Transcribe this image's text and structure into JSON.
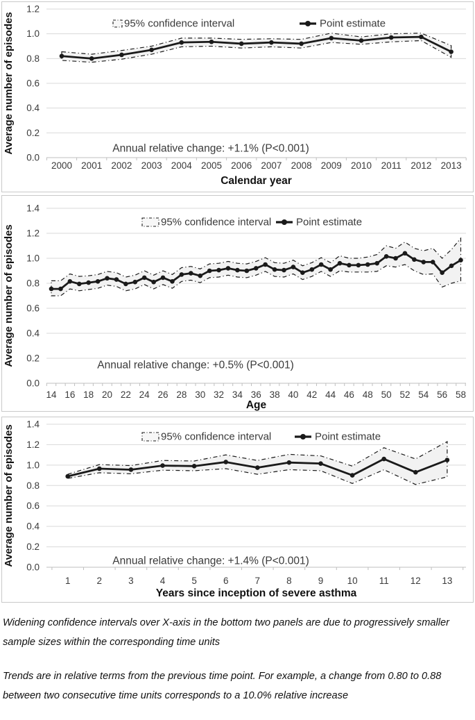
{
  "figure": {
    "footnotes": [
      "Widening confidence intervals over X-axis in the bottom two panels are due to progressively smaller sample sizes within the corresponding time units",
      "Trends are in relative terms from the previous time point. For example, a change from 0.80 to 0.88 between two consecutive time units corresponds to a 10.0% relative increase"
    ]
  },
  "chart_data": [
    {
      "type": "line",
      "title": "",
      "xlabel": "Calendar year",
      "ylabel": "Average number of episodes",
      "ylim": [
        0,
        1.2
      ],
      "yticks": [
        0.0,
        0.2,
        0.4,
        0.6,
        0.8,
        1.0,
        1.2
      ],
      "grid": true,
      "legend_position": "top-center",
      "legend": {
        "ci_label": "95% confidence interval",
        "point_label": "Point estimate"
      },
      "annotation": "Annual relative change: +1.1% (P<0.001)",
      "categories": [
        2000,
        2001,
        2002,
        2003,
        2004,
        2005,
        2006,
        2007,
        2008,
        2009,
        2010,
        2011,
        2012,
        2013
      ],
      "xtick_interval": 1,
      "series": [
        {
          "name": "Point estimate",
          "values": [
            0.82,
            0.8,
            0.83,
            0.87,
            0.93,
            0.935,
            0.92,
            0.93,
            0.92,
            0.965,
            0.945,
            0.97,
            0.975,
            0.855
          ]
        },
        {
          "name": "95% CI upper",
          "values": [
            0.855,
            0.835,
            0.865,
            0.9,
            0.965,
            0.965,
            0.955,
            0.96,
            0.955,
            1.005,
            0.975,
            1.0,
            1.005,
            0.905
          ]
        },
        {
          "name": "95% CI lower",
          "values": [
            0.785,
            0.77,
            0.795,
            0.835,
            0.895,
            0.9,
            0.885,
            0.895,
            0.885,
            0.93,
            0.915,
            0.935,
            0.945,
            0.81
          ]
        }
      ]
    },
    {
      "type": "line",
      "title": "",
      "xlabel": "Age",
      "ylabel": "Average number of episodes",
      "ylim": [
        0,
        1.4
      ],
      "yticks": [
        0.0,
        0.2,
        0.4,
        0.6,
        0.8,
        1.0,
        1.2,
        1.4
      ],
      "grid": true,
      "legend_position": "top-center",
      "legend": {
        "ci_label": "95% confidence interval",
        "point_label": "Point estimate"
      },
      "annotation": "Annual relative change: +0.5% (P<0.001)",
      "categories": [
        14,
        15,
        16,
        17,
        18,
        19,
        20,
        21,
        22,
        23,
        24,
        25,
        26,
        27,
        28,
        29,
        30,
        31,
        32,
        33,
        34,
        35,
        36,
        37,
        38,
        39,
        40,
        41,
        42,
        43,
        44,
        45,
        46,
        47,
        48,
        49,
        50,
        51,
        52,
        53,
        54,
        55,
        56,
        57,
        58
      ],
      "xtick_interval": 2,
      "series": [
        {
          "name": "Point estimate",
          "values": [
            0.755,
            0.755,
            0.815,
            0.795,
            0.805,
            0.815,
            0.84,
            0.83,
            0.795,
            0.81,
            0.845,
            0.81,
            0.845,
            0.815,
            0.87,
            0.88,
            0.86,
            0.9,
            0.905,
            0.92,
            0.905,
            0.9,
            0.92,
            0.95,
            0.91,
            0.905,
            0.93,
            0.885,
            0.91,
            0.95,
            0.91,
            0.96,
            0.945,
            0.945,
            0.95,
            0.96,
            1.015,
            1.0,
            1.04,
            0.99,
            0.97,
            0.97,
            0.885,
            0.94,
            0.985
          ]
        },
        {
          "name": "95% CI upper",
          "values": [
            0.82,
            0.82,
            0.875,
            0.855,
            0.86,
            0.87,
            0.895,
            0.885,
            0.85,
            0.865,
            0.9,
            0.865,
            0.9,
            0.87,
            0.925,
            0.935,
            0.915,
            0.955,
            0.96,
            0.975,
            0.96,
            0.955,
            0.975,
            1.005,
            0.965,
            0.96,
            0.985,
            0.94,
            0.965,
            1.005,
            0.965,
            1.02,
            1.0,
            1.0,
            1.01,
            1.03,
            1.1,
            1.08,
            1.13,
            1.08,
            1.06,
            1.08,
            1.0,
            1.07,
            1.16
          ]
        },
        {
          "name": "95% CI lower",
          "values": [
            0.7,
            0.7,
            0.755,
            0.74,
            0.75,
            0.76,
            0.785,
            0.775,
            0.74,
            0.755,
            0.79,
            0.755,
            0.79,
            0.76,
            0.815,
            0.825,
            0.805,
            0.845,
            0.85,
            0.865,
            0.85,
            0.845,
            0.865,
            0.895,
            0.855,
            0.85,
            0.875,
            0.83,
            0.855,
            0.895,
            0.855,
            0.9,
            0.89,
            0.89,
            0.89,
            0.895,
            0.94,
            0.93,
            0.95,
            0.9,
            0.87,
            0.875,
            0.77,
            0.8,
            0.82
          ]
        }
      ]
    },
    {
      "type": "line",
      "title": "",
      "xlabel": "Years since inception of severe asthma",
      "ylabel": "Average number of episodes",
      "ylim": [
        0,
        1.4
      ],
      "yticks": [
        0.0,
        0.2,
        0.4,
        0.6,
        0.8,
        1.0,
        1.2,
        1.4
      ],
      "grid": true,
      "legend_position": "top-center",
      "legend": {
        "ci_label": "95% confidence interval",
        "point_label": "Point estimate"
      },
      "annotation": "Annual relative change: +1.4% (P<0.001)",
      "categories": [
        1,
        2,
        3,
        4,
        5,
        6,
        7,
        8,
        9,
        10,
        11,
        12,
        13
      ],
      "xtick_interval": 1,
      "series": [
        {
          "name": "Point estimate",
          "values": [
            0.89,
            0.965,
            0.955,
            0.995,
            0.99,
            1.03,
            0.975,
            1.025,
            1.015,
            0.9,
            1.06,
            0.93,
            1.05
          ]
        },
        {
          "name": "95% CI upper",
          "values": [
            0.91,
            1.005,
            0.995,
            1.045,
            1.04,
            1.1,
            1.045,
            1.105,
            1.09,
            0.99,
            1.17,
            1.06,
            1.23
          ]
        },
        {
          "name": "95% CI lower",
          "values": [
            0.87,
            0.925,
            0.915,
            0.95,
            0.945,
            0.965,
            0.91,
            0.955,
            0.945,
            0.82,
            0.955,
            0.81,
            0.885
          ]
        }
      ]
    }
  ]
}
